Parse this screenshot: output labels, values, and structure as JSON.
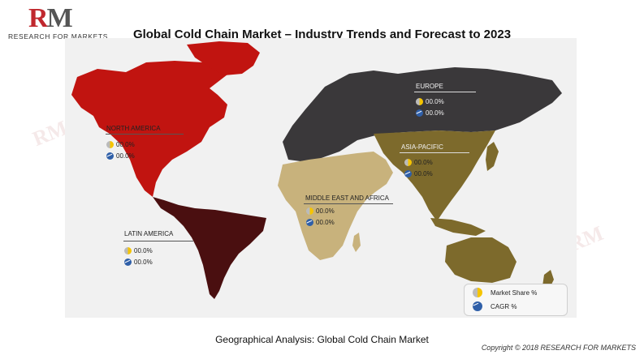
{
  "logo": {
    "mark_r": "R",
    "mark_m": "M",
    "text": "RESEARCH FOR MARKETS"
  },
  "title": "Global Cold Chain Market – Industry Trends and Forecast to 2023",
  "regions": {
    "north_america": {
      "label": "NORTH AMERICA",
      "market_share": "00.0%",
      "cagr": "00.0%",
      "color": "#c11410"
    },
    "europe": {
      "label": "EUROPE",
      "market_share": "00.0%",
      "cagr": "00.0%",
      "color": "#3a383a"
    },
    "asia_pacific": {
      "label": "ASIA-PACIFIC",
      "market_share": "00.0%",
      "cagr": "00.0%",
      "color": "#7d6a2c"
    },
    "middle_east_africa": {
      "label": "MIDDLE EAST AND AFRICA",
      "market_share": "00.0%",
      "cagr": "00.0%",
      "color": "#c8b27c"
    },
    "latin_america": {
      "label": "LATIN AMERICA",
      "market_share": "00.0%",
      "cagr": "00.0%",
      "color": "#4a0f10"
    }
  },
  "legend": {
    "market_share": "Market Share %",
    "cagr": "CAGR %"
  },
  "caption": "Geographical Analysis: Global Cold Chain Market",
  "copyright": "Copyright © 2018 RESEARCH FOR MARKETS",
  "icons": [
    "pie-chart-icon",
    "trend-up-icon"
  ]
}
